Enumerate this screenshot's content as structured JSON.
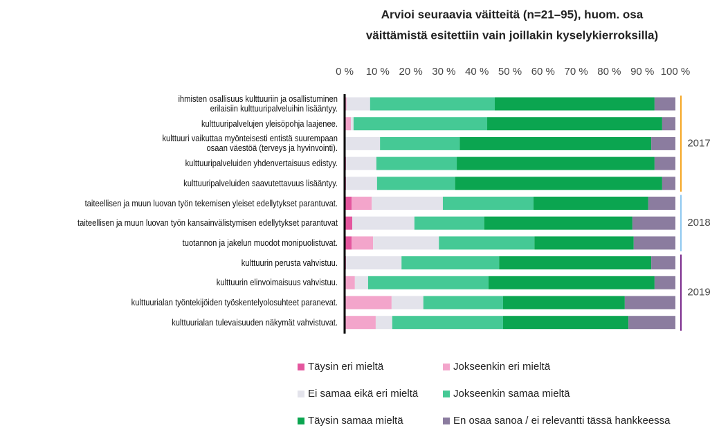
{
  "chart_data": {
    "type": "stacked-bar-horizontal",
    "title": [
      "Arvioi seuraavia väitteitä (n=21–95), huom. osa",
      "väittämistä esitettiin vain joillakin kyselykierroksilla)"
    ],
    "categories": [
      "ihmisten osallisuus kulttuuriin ja osallistuminen\nerilaisiin kulttuuripalveluihin lisääntyy.",
      "kulttuuripalvelujen yleisöpohja laajenee.",
      "kulttuuri vaikuttaa myönteisesti entistä suurempaan\nosaan väestöä  (terveys ja hyvinvointi).",
      "kulttuuripalveluiden yhdenvertaisuus edistyy.",
      "kulttuuripalveluiden saavutettavuus lisääntyy.",
      "taiteellisen ja muun luovan työn tekemisen yleiset edellytykset parantuvat.",
      "taiteellisen ja muun luovan työn kansainvälistymisen edellytykset parantuvat",
      "tuotannon ja jakelun muodot monipuolistuvat.",
      "kulttuurin perusta vahvistuu.",
      "kulttuurin elinvoimaisuus vahvistuu.",
      "kulttuurialan työntekijöiden työskentelyolosuhteet paranevat.",
      "kulttuurialan tulevaisuuden näkymät vahvistuvat."
    ],
    "series": [
      {
        "name": "Täysin eri mieltä",
        "color": "#e4569e",
        "values": [
          0,
          0,
          0,
          0.4,
          0.4,
          2.1,
          2.3,
          2.1,
          0.4,
          0,
          0,
          0
        ]
      },
      {
        "name": "Jokseenkin eri mieltä",
        "color": "#f3a5cb",
        "values": [
          0.6,
          1.9,
          0,
          0,
          0,
          6.1,
          0,
          6.5,
          0,
          3.1,
          14.2,
          9.4
        ]
      },
      {
        "name": "Ei samaa eikä eri mieltä",
        "color": "#e3e3eb",
        "values": [
          7.1,
          0.8,
          10.7,
          9.2,
          9.4,
          21.5,
          18.8,
          19.9,
          16.8,
          4.0,
          9.6,
          5.0
        ]
      },
      {
        "name": "Jokseenkin samaa mieltä",
        "color": "#45c995",
        "values": [
          37.7,
          40.4,
          24.1,
          24.3,
          23.6,
          27.4,
          21.1,
          28.9,
          29.5,
          36.4,
          24.1,
          33.5
        ]
      },
      {
        "name": "Täysin samaa mieltä",
        "color": "#0ba550",
        "values": [
          48.3,
          52.9,
          57.9,
          59.8,
          62.6,
          34.7,
          44.8,
          30.0,
          46.0,
          50.2,
          36.8,
          37.9
        ]
      },
      {
        "name": "En osaa sanoa / ei relevantti tässä hankkeessa",
        "color": "#8b7c9f",
        "values": [
          6.3,
          4.0,
          7.3,
          6.3,
          4.0,
          8.2,
          13.0,
          12.6,
          7.3,
          6.3,
          15.3,
          14.2
        ]
      }
    ],
    "xlim": [
      0,
      100
    ],
    "xticks": [
      {
        "value": 0,
        "label": "0 %"
      },
      {
        "value": 10,
        "label": "10 %"
      },
      {
        "value": 20,
        "label": "20 %"
      },
      {
        "value": 30,
        "label": "30 %"
      },
      {
        "value": 40,
        "label": "40 %"
      },
      {
        "value": 50,
        "label": "50 %"
      },
      {
        "value": 60,
        "label": "60 %"
      },
      {
        "value": 70,
        "label": "70 %"
      },
      {
        "value": 80,
        "label": "80 %"
      },
      {
        "value": 90,
        "label": "90 %"
      },
      {
        "value": 100,
        "label": "100 %"
      }
    ],
    "groups": [
      {
        "label": "2017",
        "first": 0,
        "last": 4,
        "color": "#f5a623"
      },
      {
        "label": "2018",
        "first": 5,
        "last": 7,
        "color": "#8ec8f0"
      },
      {
        "label": "2019",
        "first": 8,
        "last": 11,
        "color": "#7a2a8c"
      }
    ]
  }
}
